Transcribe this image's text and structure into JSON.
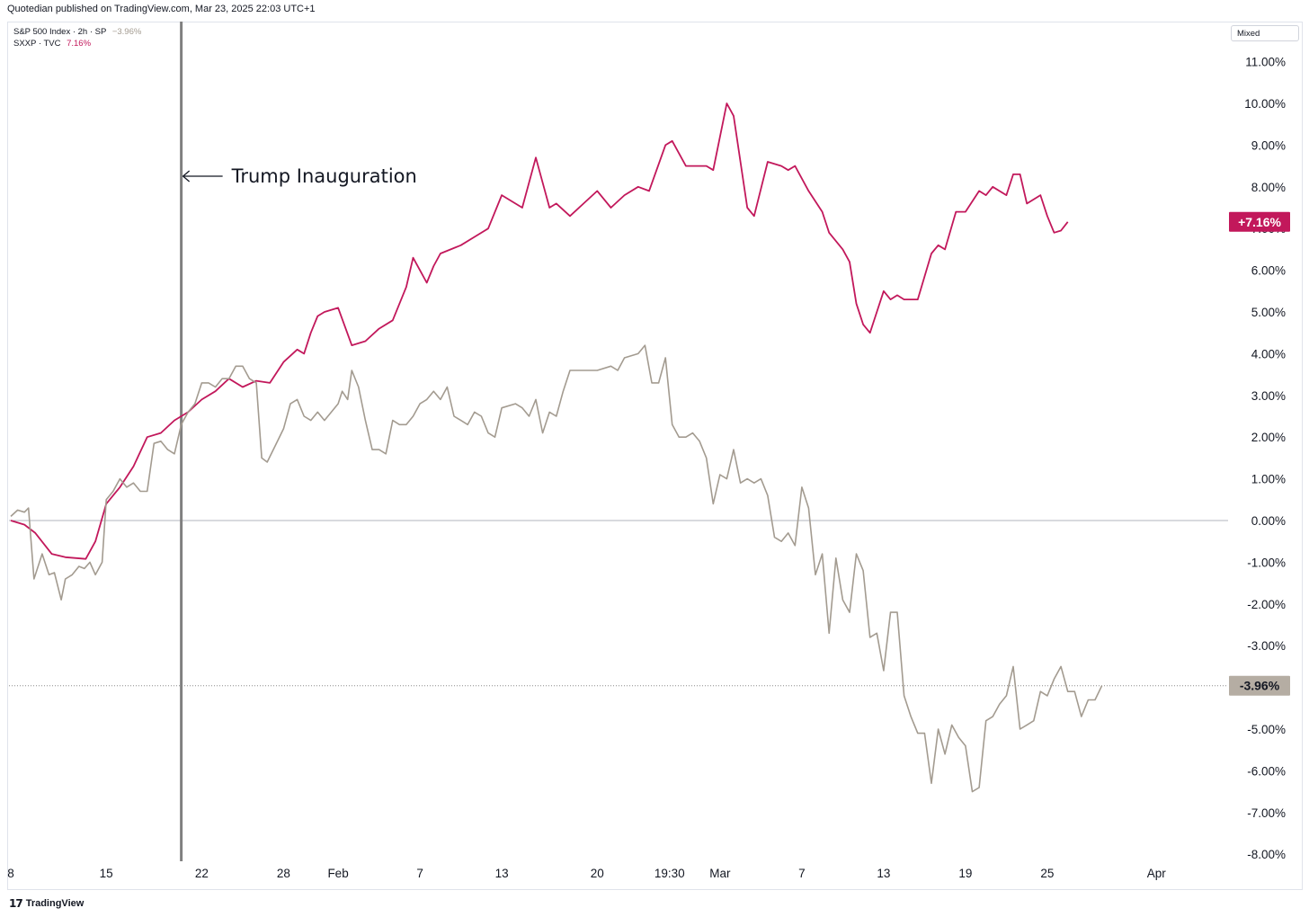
{
  "header": {
    "attribution": "Quotedian published on TradingView.com, Mar 23, 2025 22:03 UTC+1"
  },
  "legend": {
    "spx_label": "S&P 500 Index · 2h · SP",
    "spx_value": "−3.96%",
    "sxxp_label": "SXXP · TVC",
    "sxxp_value": "7.16%"
  },
  "scale_mode": "Mixed",
  "footer": {
    "brand_logo": "𝟭𝟳",
    "brand": "TradingView"
  },
  "colors": {
    "sxxp": "#c2185b",
    "spx": "#a39b90",
    "axis_text": "#131722",
    "vline": "#808080"
  },
  "chart_data": {
    "type": "line",
    "ylim": [
      -8.4,
      11.4
    ],
    "y_ticks": [
      "11.00%",
      "10.00%",
      "9.00%",
      "8.00%",
      "7.00%",
      "6.00%",
      "5.00%",
      "4.00%",
      "3.00%",
      "2.00%",
      "1.00%",
      "0.00%",
      "-1.00%",
      "-2.00%",
      "-3.00%",
      "-4.00%",
      "-5.00%",
      "-6.00%",
      "-7.00%",
      "-8.00%"
    ],
    "y_tick_values": [
      11,
      10,
      9,
      8,
      7,
      6,
      5,
      4,
      3,
      2,
      1,
      0,
      -1,
      -2,
      -3,
      -4,
      -5,
      -6,
      -7,
      -8
    ],
    "x_ticks": [
      {
        "label": "8",
        "t": 0
      },
      {
        "label": "15",
        "t": 7
      },
      {
        "label": "22",
        "t": 14
      },
      {
        "label": "28",
        "t": 20
      },
      {
        "label": "Feb",
        "t": 24
      },
      {
        "label": "7",
        "t": 30
      },
      {
        "label": "13",
        "t": 36
      },
      {
        "label": "20",
        "t": 43
      },
      {
        "label": "19:30",
        "t": 48.3
      },
      {
        "label": "Mar",
        "t": 52
      },
      {
        "label": "7",
        "t": 58
      },
      {
        "label": "13",
        "t": 64
      },
      {
        "label": "19",
        "t": 70
      },
      {
        "label": "25",
        "t": 76
      },
      {
        "label": "Apr",
        "t": 84
      }
    ],
    "annotation": {
      "text": "Trump Inauguration",
      "t": 12.5
    },
    "last_labels": {
      "sxxp": "+7.16%",
      "spx": "-3.96%"
    },
    "series": [
      {
        "name": "SXXP · TVC",
        "key": "sxxp",
        "points": [
          [
            0,
            0
          ],
          [
            1,
            -0.1
          ],
          [
            1.8,
            -0.3
          ],
          [
            3,
            -0.8
          ],
          [
            4,
            -0.88
          ],
          [
            5.5,
            -0.92
          ],
          [
            6.2,
            -0.5
          ],
          [
            7,
            0.4
          ],
          [
            8,
            0.8
          ],
          [
            9,
            1.3
          ],
          [
            10,
            2.0
          ],
          [
            11,
            2.1
          ],
          [
            12,
            2.4
          ],
          [
            13,
            2.6
          ],
          [
            14,
            2.9
          ],
          [
            15,
            3.1
          ],
          [
            16,
            3.4
          ],
          [
            17,
            3.2
          ],
          [
            18,
            3.35
          ],
          [
            19,
            3.3
          ],
          [
            20,
            3.8
          ],
          [
            21,
            4.1
          ],
          [
            21.5,
            4.0
          ],
          [
            22,
            4.5
          ],
          [
            22.5,
            4.9
          ],
          [
            23,
            5.0
          ],
          [
            24,
            5.1
          ],
          [
            25,
            4.2
          ],
          [
            26,
            4.3
          ],
          [
            27,
            4.6
          ],
          [
            28,
            4.8
          ],
          [
            29,
            5.6
          ],
          [
            29.5,
            6.3
          ],
          [
            30,
            6.0
          ],
          [
            30.5,
            5.7
          ],
          [
            31,
            6.1
          ],
          [
            31.5,
            6.4
          ],
          [
            33,
            6.6
          ],
          [
            34,
            6.8
          ],
          [
            35,
            7.0
          ],
          [
            36,
            7.8
          ],
          [
            37,
            7.6
          ],
          [
            37.5,
            7.5
          ],
          [
            38.5,
            8.7
          ],
          [
            39.5,
            7.5
          ],
          [
            40,
            7.6
          ],
          [
            41,
            7.3
          ],
          [
            42,
            7.6
          ],
          [
            43,
            7.9
          ],
          [
            44,
            7.5
          ],
          [
            45,
            7.8
          ],
          [
            46,
            8.0
          ],
          [
            46.8,
            7.9
          ],
          [
            48,
            9.0
          ],
          [
            48.5,
            9.1
          ],
          [
            49.5,
            8.5
          ],
          [
            51,
            8.5
          ],
          [
            51.5,
            8.4
          ],
          [
            52.5,
            10.0
          ],
          [
            53,
            9.7
          ],
          [
            54,
            7.5
          ],
          [
            54.5,
            7.3
          ],
          [
            55.5,
            8.6
          ],
          [
            56.5,
            8.5
          ],
          [
            57,
            8.4
          ],
          [
            57.5,
            8.5
          ],
          [
            58.5,
            7.9
          ],
          [
            59.5,
            7.4
          ],
          [
            60,
            6.9
          ],
          [
            61,
            6.5
          ],
          [
            61.5,
            6.2
          ],
          [
            62,
            5.2
          ],
          [
            62.5,
            4.7
          ],
          [
            63,
            4.5
          ],
          [
            63.5,
            5.0
          ],
          [
            64,
            5.5
          ],
          [
            64.5,
            5.3
          ],
          [
            65,
            5.4
          ],
          [
            65.5,
            5.3
          ],
          [
            66.5,
            5.3
          ],
          [
            67.5,
            6.4
          ],
          [
            68,
            6.6
          ],
          [
            68.5,
            6.5
          ],
          [
            69.3,
            7.4
          ],
          [
            70,
            7.4
          ],
          [
            71,
            7.9
          ],
          [
            71.5,
            7.8
          ],
          [
            72,
            8.0
          ],
          [
            73,
            7.8
          ],
          [
            73.5,
            8.3
          ],
          [
            74,
            8.3
          ],
          [
            74.5,
            7.6
          ],
          [
            75.5,
            7.8
          ],
          [
            76,
            7.3
          ],
          [
            76.5,
            6.9
          ],
          [
            77,
            6.95
          ],
          [
            77.5,
            7.16
          ]
        ]
      },
      {
        "name": "S&P 500 Index · 2h · SP",
        "key": "spx",
        "points": [
          [
            0,
            0.1
          ],
          [
            0.5,
            0.25
          ],
          [
            1,
            0.2
          ],
          [
            1.3,
            0.3
          ],
          [
            1.7,
            -1.4
          ],
          [
            2.3,
            -0.8
          ],
          [
            2.8,
            -1.3
          ],
          [
            3.2,
            -1.25
          ],
          [
            3.7,
            -1.9
          ],
          [
            4,
            -1.4
          ],
          [
            4.5,
            -1.3
          ],
          [
            5,
            -1.1
          ],
          [
            5.4,
            -1.15
          ],
          [
            5.8,
            -1.0
          ],
          [
            6.2,
            -1.3
          ],
          [
            6.7,
            -1.0
          ],
          [
            7,
            0.5
          ],
          [
            7.5,
            0.7
          ],
          [
            8,
            1.0
          ],
          [
            8.5,
            0.8
          ],
          [
            9,
            0.9
          ],
          [
            9.5,
            0.7
          ],
          [
            10,
            0.7
          ],
          [
            10.5,
            1.85
          ],
          [
            11,
            1.9
          ],
          [
            11.5,
            1.7
          ],
          [
            12,
            1.6
          ],
          [
            12.5,
            2.3
          ],
          [
            13,
            2.6
          ],
          [
            13.5,
            2.8
          ],
          [
            14,
            3.3
          ],
          [
            14.5,
            3.3
          ],
          [
            15,
            3.2
          ],
          [
            15.5,
            3.4
          ],
          [
            16,
            3.4
          ],
          [
            16.5,
            3.7
          ],
          [
            17,
            3.7
          ],
          [
            17.5,
            3.4
          ],
          [
            18,
            3.3
          ],
          [
            18.4,
            1.5
          ],
          [
            18.8,
            1.4
          ],
          [
            19.4,
            1.8
          ],
          [
            20,
            2.2
          ],
          [
            20.5,
            2.8
          ],
          [
            21,
            2.9
          ],
          [
            21.5,
            2.5
          ],
          [
            22,
            2.4
          ],
          [
            22.5,
            2.6
          ],
          [
            23,
            2.4
          ],
          [
            23.5,
            2.6
          ],
          [
            24,
            2.8
          ],
          [
            24.3,
            3.1
          ],
          [
            24.7,
            2.9
          ],
          [
            25,
            3.6
          ],
          [
            25.5,
            3.2
          ],
          [
            26,
            2.4
          ],
          [
            26.5,
            1.7
          ],
          [
            27,
            1.7
          ],
          [
            27.5,
            1.6
          ],
          [
            28,
            2.4
          ],
          [
            28.5,
            2.3
          ],
          [
            29,
            2.3
          ],
          [
            29.5,
            2.5
          ],
          [
            30,
            2.8
          ],
          [
            30.5,
            2.9
          ],
          [
            31,
            3.1
          ],
          [
            31.5,
            2.9
          ],
          [
            32,
            3.2
          ],
          [
            32.5,
            2.5
          ],
          [
            33,
            2.4
          ],
          [
            33.5,
            2.3
          ],
          [
            34,
            2.6
          ],
          [
            34.5,
            2.5
          ],
          [
            35,
            2.1
          ],
          [
            35.5,
            2.0
          ],
          [
            36,
            2.7
          ],
          [
            37,
            2.8
          ],
          [
            37.5,
            2.7
          ],
          [
            38,
            2.5
          ],
          [
            38.5,
            2.9
          ],
          [
            39,
            2.1
          ],
          [
            39.5,
            2.6
          ],
          [
            40,
            2.5
          ],
          [
            40.5,
            3.1
          ],
          [
            41,
            3.6
          ],
          [
            42,
            3.6
          ],
          [
            43,
            3.6
          ],
          [
            44,
            3.7
          ],
          [
            44.5,
            3.6
          ],
          [
            45,
            3.9
          ],
          [
            46,
            4.0
          ],
          [
            46.5,
            4.2
          ],
          [
            47,
            3.3
          ],
          [
            47.5,
            3.3
          ],
          [
            48,
            3.9
          ],
          [
            48.5,
            2.3
          ],
          [
            49,
            2.0
          ],
          [
            49.5,
            2.0
          ],
          [
            50,
            2.1
          ],
          [
            50.5,
            1.9
          ],
          [
            51,
            1.5
          ],
          [
            51.5,
            0.4
          ],
          [
            52,
            1.1
          ],
          [
            52.5,
            1.0
          ],
          [
            53,
            1.7
          ],
          [
            53.5,
            0.9
          ],
          [
            54,
            1.0
          ],
          [
            54.5,
            0.9
          ],
          [
            55,
            1.0
          ],
          [
            55.5,
            0.6
          ],
          [
            56,
            -0.4
          ],
          [
            56.5,
            -0.5
          ],
          [
            57,
            -0.3
          ],
          [
            57.5,
            -0.6
          ],
          [
            58,
            0.8
          ],
          [
            58.5,
            0.3
          ],
          [
            59,
            -1.3
          ],
          [
            59.5,
            -0.8
          ],
          [
            60,
            -2.7
          ],
          [
            60.5,
            -0.9
          ],
          [
            61,
            -1.9
          ],
          [
            61.5,
            -2.2
          ],
          [
            62,
            -0.8
          ],
          [
            62.5,
            -1.2
          ],
          [
            63,
            -2.8
          ],
          [
            63.5,
            -2.7
          ],
          [
            64,
            -3.6
          ],
          [
            64.5,
            -2.2
          ],
          [
            65,
            -2.2
          ],
          [
            65.5,
            -4.2
          ],
          [
            66,
            -4.7
          ],
          [
            66.5,
            -5.1
          ],
          [
            67,
            -5.1
          ],
          [
            67.5,
            -6.3
          ],
          [
            68,
            -5.0
          ],
          [
            68.5,
            -5.6
          ],
          [
            69,
            -4.9
          ],
          [
            69.5,
            -5.2
          ],
          [
            70,
            -5.4
          ],
          [
            70.5,
            -6.5
          ],
          [
            71,
            -6.4
          ],
          [
            71.5,
            -4.8
          ],
          [
            72,
            -4.7
          ],
          [
            72.5,
            -4.4
          ],
          [
            73,
            -4.2
          ],
          [
            73.5,
            -3.5
          ],
          [
            74,
            -5.0
          ],
          [
            74.5,
            -4.9
          ],
          [
            75,
            -4.8
          ],
          [
            75.5,
            -4.1
          ],
          [
            76,
            -4.2
          ],
          [
            76.5,
            -3.8
          ],
          [
            77,
            -3.5
          ],
          [
            77.5,
            -4.1
          ],
          [
            78,
            -4.1
          ],
          [
            78.5,
            -4.7
          ],
          [
            79,
            -4.3
          ],
          [
            79.5,
            -4.3
          ],
          [
            80,
            -3.96
          ]
        ]
      }
    ]
  }
}
